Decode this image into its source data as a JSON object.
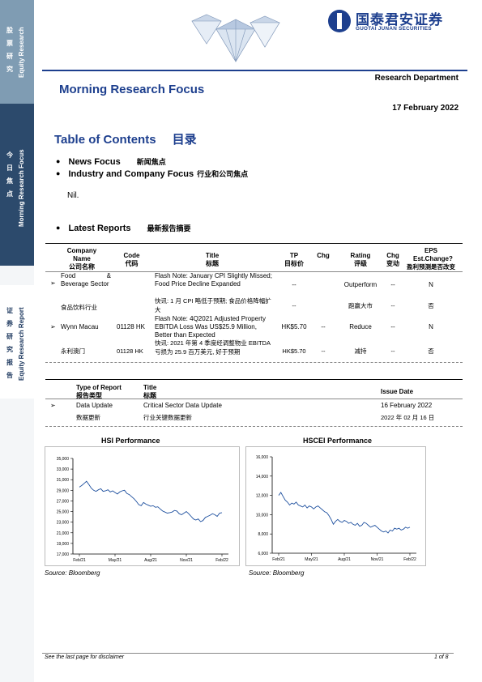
{
  "sidebar": {
    "block1_cn": "股票研究",
    "block1_en": "Equity Research",
    "block2_cn": "今日焦点",
    "block2_en": "Morning Research Focus",
    "block3_cn": "证券研究报告",
    "block3_en": "Equity Research Report"
  },
  "header": {
    "logo_cn": "国泰君安证券",
    "logo_en": "GUOTAI JUNAN SECURITIES",
    "department": "Research Department",
    "title": "Morning Research Focus",
    "date": "17 February 2022"
  },
  "toc": {
    "title_en": "Table of Contents",
    "title_cn": "目录",
    "news_en": "News Focus",
    "news_cn": "新闻焦点",
    "industry_en": "Industry and Company Focus",
    "industry_cn": "行业和公司焦点",
    "nil": "Nil.",
    "latest_en": "Latest Reports",
    "latest_cn": "最新报告摘要"
  },
  "reports_table": {
    "headers": {
      "company_en": "Company Name",
      "company_cn": "公司名称",
      "code_en": "Code",
      "code_cn": "代码",
      "title_en": "Title",
      "title_cn": "标题",
      "tp_en": "TP",
      "tp_cn": "目标价",
      "chg": "Chg",
      "rating_en": "Rating",
      "rating_cn": "评级",
      "chg2_en": "Chg",
      "chg2_cn": "变动",
      "eps_en": "EPS Est.Change?",
      "eps_cn": "盈利预测是否改变"
    },
    "rows": [
      {
        "company_en": "Food & Beverage Sector",
        "company_cn": "食品饮料行业",
        "code": "",
        "title_en": "Flash Note: January CPI Slightly Missed; Food Price Decline Expanded",
        "title_cn": "快讯: 1 月 CPI 略低于预期; 食品价格降幅扩大",
        "tp_en": "--",
        "tp_cn": "--",
        "chg_en": "",
        "chg_cn": "",
        "rating_en": "Outperform",
        "rating_cn": "跑赢大市",
        "chg2_en": "--",
        "chg2_cn": "--",
        "eps_en": "N",
        "eps_cn": "否"
      },
      {
        "company_en": "Wynn Macau",
        "company_cn": "永利澳门",
        "code": "01128 HK",
        "title_en": "Flash Note: 4Q2021 Adjusted Property EBITDA Loss Was US$25.9 Million, Better than Expected",
        "title_cn": "快讯: 2021 年第 4 季度经调整物业 EBITDA 亏损为 25.9 百万美元, 好于预期",
        "tp_en": "HK$5.70",
        "tp_cn": "HK$5.70",
        "chg_en": "--",
        "chg_cn": "--",
        "rating_en": "Reduce",
        "rating_cn": "减持",
        "chg2_en": "--",
        "chg2_cn": "--",
        "eps_en": "N",
        "eps_cn": "否"
      }
    ]
  },
  "data_table": {
    "headers": {
      "type_en": "Type of Report",
      "type_cn": "报告类型",
      "title_en": "Title",
      "title_cn": "标题",
      "issue": "Issue Date"
    },
    "row": {
      "type_en": "Data Update",
      "type_cn": "数据更新",
      "title_en": "Critical Sector Data Update",
      "title_cn": "行业关键数据更新",
      "date_en": "16 February 2022",
      "date_cn": "2022 年 02 月 16 日"
    }
  },
  "chart_data": [
    {
      "type": "line",
      "title": "HSI Performance",
      "source": "Source: Bloomberg",
      "x_ticks": [
        "Feb/21",
        "May/21",
        "Aug/21",
        "Nov/21",
        "Feb/22"
      ],
      "y_ticks": [
        "35,000",
        "33,000",
        "31,000",
        "29,000",
        "27,000",
        "25,000",
        "23,000",
        "21,000",
        "19,000",
        "17,000"
      ],
      "ylim": [
        17000,
        35000
      ],
      "color": "#1d4f9e",
      "values": [
        29600,
        29900,
        30300,
        30700,
        30100,
        29400,
        29000,
        28800,
        29100,
        29300,
        28800,
        28900,
        29100,
        28700,
        28900,
        28600,
        28300,
        28700,
        28900,
        29000,
        28400,
        28200,
        27800,
        27400,
        26900,
        26300,
        26100,
        26700,
        26400,
        26200,
        26000,
        26100,
        25800,
        25900,
        25500,
        25100,
        24900,
        24700,
        24800,
        24900,
        25200,
        25100,
        24600,
        24400,
        24700,
        25000,
        24600,
        24100,
        23600,
        23400,
        23600,
        23100,
        23300,
        23900,
        24100,
        24300,
        24600,
        24400,
        24100,
        24700,
        24800
      ]
    },
    {
      "type": "line",
      "title": "HSCEI Performance",
      "source": "Source: Bloomberg",
      "x_ticks": [
        "Feb/21",
        "May/21",
        "Aug/21",
        "Nov/21",
        "Feb/22"
      ],
      "y_ticks": [
        "16,000",
        "14,000",
        "12,000",
        "10,000",
        "8,000",
        "6,000"
      ],
      "ylim": [
        6000,
        16000
      ],
      "color": "#1d4f9e",
      "values": [
        12000,
        12300,
        11900,
        11500,
        11300,
        11000,
        11200,
        11100,
        11300,
        11000,
        10900,
        10800,
        11000,
        10700,
        10900,
        10800,
        10600,
        10800,
        10900,
        10700,
        10500,
        10300,
        10200,
        9900,
        9500,
        9000,
        9300,
        9500,
        9300,
        9200,
        9400,
        9300,
        9100,
        9200,
        9000,
        8900,
        9100,
        8800,
        8900,
        9200,
        9100,
        8900,
        8700,
        8800,
        8900,
        8700,
        8500,
        8300,
        8200,
        8300,
        8100,
        8400,
        8300,
        8600,
        8500,
        8600,
        8400,
        8500,
        8700,
        8600,
        8700
      ]
    }
  ],
  "footer": {
    "disclaimer": "See the last page for disclaimer",
    "page": "1 of 8"
  }
}
